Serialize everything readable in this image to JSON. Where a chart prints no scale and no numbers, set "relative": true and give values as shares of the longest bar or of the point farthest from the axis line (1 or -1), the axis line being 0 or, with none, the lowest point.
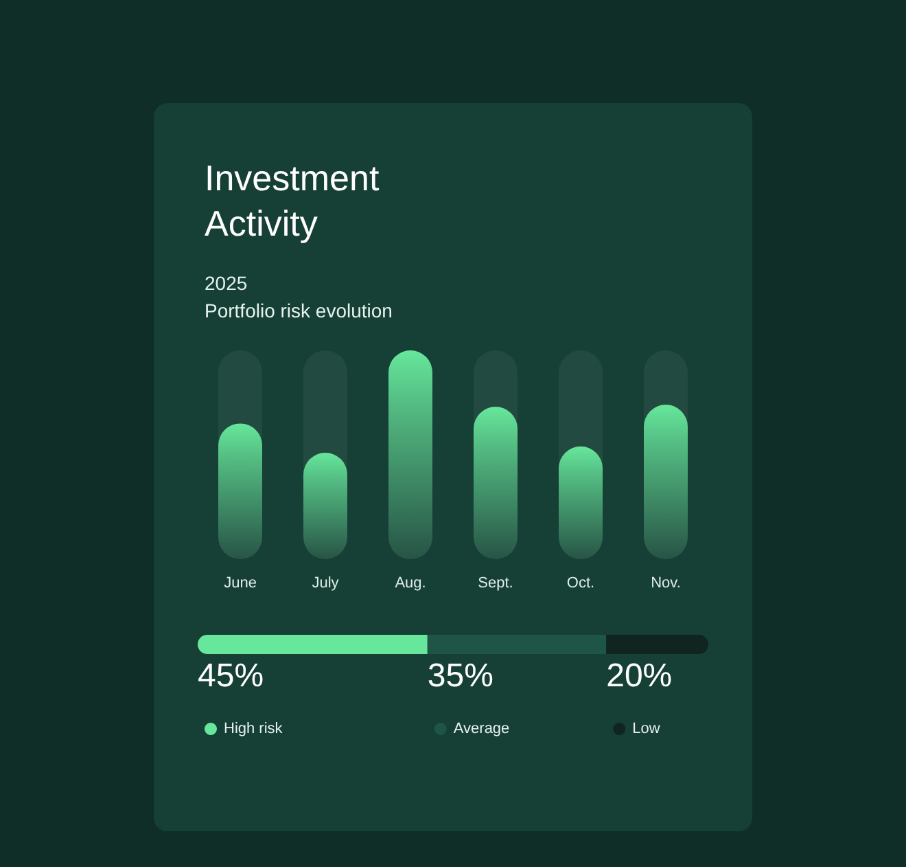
{
  "chart_data": [
    {
      "type": "bar",
      "title": "Investment\nActivity",
      "subtitle": "2025",
      "annotations": [
        "Portfolio risk evolution"
      ],
      "relative": true,
      "categories": [
        "June",
        "July",
        "Aug.",
        "Sept.",
        "Oct.",
        "Nov."
      ],
      "values": [
        0.65,
        0.51,
        1,
        0.73,
        0.54,
        0.74
      ],
      "color": "#66e79b",
      "legend": false,
      "grid": false
    },
    {
      "type": "bar",
      "orientation": "horizontal",
      "stacked": true,
      "categories": [
        null
      ],
      "legend": "bottom left",
      "grid": false,
      "series": [
        {
          "name": "High risk",
          "color": "#66e79b",
          "values": [
            45
          ],
          "value_labels": [
            "45%"
          ]
        },
        {
          "name": "Average",
          "color": "#1f5546",
          "values": [
            35
          ],
          "value_labels": [
            "35%"
          ]
        },
        {
          "name": "Low",
          "color": "#10251f",
          "values": [
            20
          ],
          "value_labels": [
            "20%"
          ]
        }
      ]
    }
  ]
}
